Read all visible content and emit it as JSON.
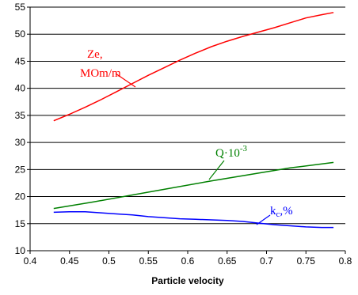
{
  "chart_data": {
    "type": "line",
    "xlabel": "Particle velocity",
    "ylabel": "",
    "xlim": [
      0.4,
      0.8
    ],
    "ylim": [
      10,
      55
    ],
    "x_ticks": [
      "0.4",
      "0.45",
      "0.5",
      "0.55",
      "0.6",
      "0.65",
      "0.7",
      "0.75",
      "0.8"
    ],
    "y_ticks": [
      "10",
      "15",
      "20",
      "25",
      "30",
      "35",
      "40",
      "45",
      "50",
      "55"
    ],
    "grid": "horizontal",
    "series": [
      {
        "name": "Ze,\nMOm/m",
        "label_lines": [
          "Ze,",
          "MOm/m"
        ],
        "color": "#ff0000",
        "x": [
          0.43,
          0.45,
          0.47,
          0.49,
          0.51,
          0.53,
          0.55,
          0.57,
          0.59,
          0.61,
          0.63,
          0.65,
          0.67,
          0.69,
          0.71,
          0.73,
          0.75,
          0.77,
          0.785
        ],
        "y": [
          34,
          35.2,
          36.5,
          37.9,
          39.4,
          40.9,
          42.4,
          43.8,
          45.2,
          46.5,
          47.7,
          48.7,
          49.6,
          50.4,
          51.2,
          52.1,
          53,
          53.6,
          54
        ]
      },
      {
        "name": "Q·10-3",
        "label_main": "Q·10",
        "label_sup": "-3",
        "color": "#008000",
        "x": [
          0.43,
          0.48,
          0.53,
          0.58,
          0.63,
          0.68,
          0.73,
          0.785
        ],
        "y": [
          17.8,
          19,
          20.3,
          21.6,
          22.9,
          24.1,
          25.3,
          26.3
        ]
      },
      {
        "name": "kc,%",
        "label_k": "k",
        "label_sub": "c",
        "label_rest": ",%",
        "color": "#0000ff",
        "x": [
          0.43,
          0.45,
          0.47,
          0.49,
          0.51,
          0.53,
          0.55,
          0.57,
          0.59,
          0.61,
          0.63,
          0.65,
          0.67,
          0.69,
          0.71,
          0.73,
          0.75,
          0.77,
          0.785
        ],
        "y": [
          17.1,
          17.2,
          17.2,
          17,
          16.8,
          16.6,
          16.3,
          16.1,
          15.9,
          15.8,
          15.7,
          15.6,
          15.4,
          15.1,
          14.8,
          14.6,
          14.4,
          14.3,
          14.3
        ]
      }
    ]
  }
}
